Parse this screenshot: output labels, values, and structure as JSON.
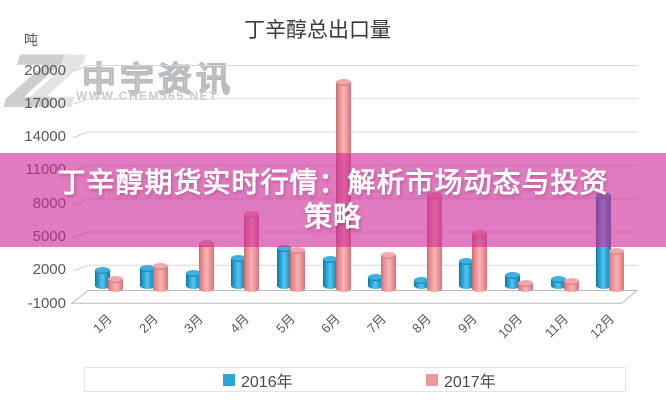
{
  "chart_data": {
    "type": "bar",
    "title": "丁辛醇总出口量",
    "unit": "吨",
    "categories": [
      "1月",
      "2月",
      "3月",
      "4月",
      "5月",
      "6月",
      "7月",
      "8月",
      "9月",
      "10月",
      "11月",
      "12月"
    ],
    "series": [
      {
        "name": "2016年",
        "color": "#2aa7d9",
        "values": [
          1500,
          1700,
          1300,
          2600,
          3500,
          2500,
          900,
          600,
          2300,
          1100,
          700,
          8300
        ]
      },
      {
        "name": "2017年",
        "color": "#f0999d",
        "values": [
          700,
          1900,
          4000,
          6600,
          3300,
          18500,
          2900,
          8300,
          4900,
          400,
          500,
          3200
        ]
      }
    ],
    "yticks": [
      20000,
      17000,
      14000,
      11000,
      8000,
      5000,
      2000,
      -1000
    ],
    "ylim": [
      -1000,
      21500
    ],
    "grid": true,
    "legend_position": "bottom",
    "bar_style": "3d-cylinder"
  },
  "overlay_banner": {
    "line1": "丁辛醇期货实时行情：解析市场动态与投资",
    "line2": "策略",
    "bg_rgba": "rgba(203,42,150,0.62)",
    "text_color": "#ffffff"
  },
  "watermark": {
    "logo": "Z",
    "name": "中宇资讯",
    "url": "WWW.CHEM365.NET"
  }
}
